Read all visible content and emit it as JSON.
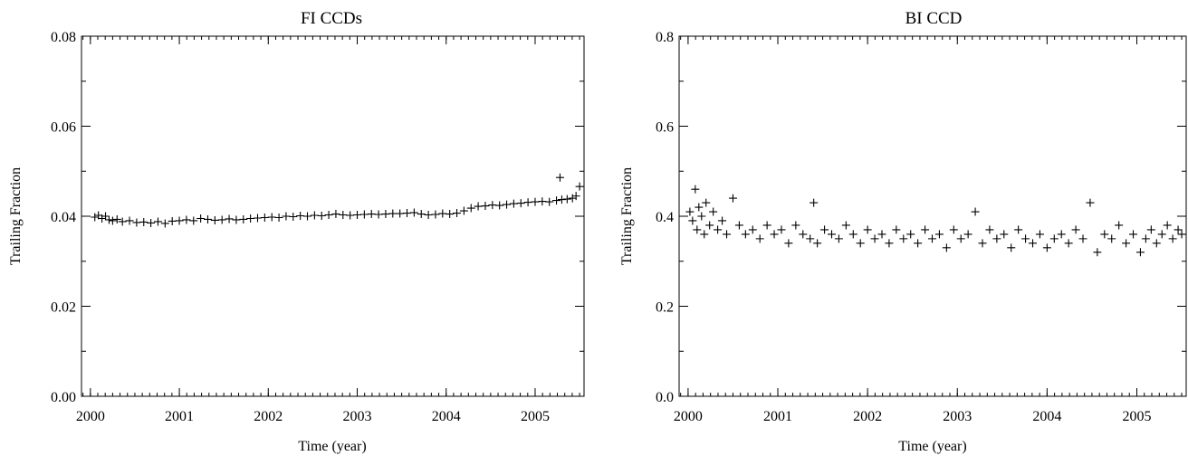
{
  "chart_data": [
    {
      "type": "scatter",
      "title": "FI CCDs",
      "xlabel": "Time (year)",
      "ylabel": "Trailing Fraction",
      "xlim": [
        1999.9,
        2005.55
      ],
      "ylim": [
        0.0,
        0.08
      ],
      "x_ticks": [
        2000,
        2001,
        2002,
        2003,
        2004,
        2005
      ],
      "x_tick_labels": [
        "2000",
        "2001",
        "2002",
        "2003",
        "2004",
        "2005"
      ],
      "y_ticks": [
        0.0,
        0.02,
        0.04,
        0.06,
        0.08
      ],
      "y_tick_labels": [
        "0.00",
        "0.02",
        "0.04",
        "0.06",
        "0.08"
      ],
      "marker": "+",
      "grid": false,
      "series": [
        {
          "x": [
            2000.05,
            2000.09,
            2000.13,
            2000.17,
            2000.21,
            2000.25,
            2000.3,
            2000.36,
            2000.44,
            2000.52,
            2000.6,
            2000.68,
            2000.76,
            2000.84,
            2000.92,
            2001.0,
            2001.08,
            2001.16,
            2001.24,
            2001.32,
            2001.4,
            2001.48,
            2001.56,
            2001.64,
            2001.72,
            2001.8,
            2001.88,
            2001.96,
            2002.04,
            2002.12,
            2002.2,
            2002.28,
            2002.36,
            2002.44,
            2002.52,
            2002.6,
            2002.68,
            2002.76,
            2002.84,
            2002.92,
            2003.0,
            2003.08,
            2003.16,
            2003.24,
            2003.32,
            2003.4,
            2003.48,
            2003.56,
            2003.64,
            2003.72,
            2003.8,
            2003.88,
            2003.96,
            2004.04,
            2004.12,
            2004.2,
            2004.28,
            2004.36,
            2004.44,
            2004.52,
            2004.6,
            2004.68,
            2004.76,
            2004.84,
            2004.92,
            2005.0,
            2005.08,
            2005.16,
            2005.24,
            2005.3,
            2005.36,
            2005.42,
            2005.46,
            2005.5,
            2005.28
          ],
          "y": [
            0.0398,
            0.0402,
            0.0395,
            0.04,
            0.0392,
            0.039,
            0.0393,
            0.0388,
            0.039,
            0.0386,
            0.0387,
            0.0385,
            0.0388,
            0.0384,
            0.0389,
            0.039,
            0.0392,
            0.039,
            0.0395,
            0.0393,
            0.0391,
            0.0392,
            0.0394,
            0.0392,
            0.0393,
            0.0395,
            0.0396,
            0.0397,
            0.0398,
            0.0397,
            0.04,
            0.0399,
            0.0401,
            0.04,
            0.0402,
            0.0401,
            0.0403,
            0.0405,
            0.0403,
            0.0402,
            0.0403,
            0.0404,
            0.0405,
            0.0404,
            0.0405,
            0.0406,
            0.0406,
            0.0407,
            0.0408,
            0.0405,
            0.0403,
            0.0404,
            0.0406,
            0.0405,
            0.0407,
            0.0412,
            0.0418,
            0.0422,
            0.0423,
            0.0425,
            0.0424,
            0.0426,
            0.0428,
            0.0429,
            0.0431,
            0.0432,
            0.0433,
            0.0432,
            0.0435,
            0.0437,
            0.0438,
            0.044,
            0.0445,
            0.0466,
            0.0486
          ]
        }
      ]
    },
    {
      "type": "scatter",
      "title": "BI CCD",
      "xlabel": "Time (year)",
      "ylabel": "Trailing Fraction",
      "xlim": [
        1999.9,
        2005.55
      ],
      "ylim": [
        0.0,
        0.8
      ],
      "x_ticks": [
        2000,
        2001,
        2002,
        2003,
        2004,
        2005
      ],
      "x_tick_labels": [
        "2000",
        "2001",
        "2002",
        "2003",
        "2004",
        "2005"
      ],
      "y_ticks": [
        0.0,
        0.2,
        0.4,
        0.6,
        0.8
      ],
      "y_tick_labels": [
        "0.0",
        "0.2",
        "0.4",
        "0.6",
        "0.8"
      ],
      "marker": "+",
      "grid": false,
      "series": [
        {
          "x": [
            2000.02,
            2000.05,
            2000.08,
            2000.1,
            2000.12,
            2000.15,
            2000.18,
            2000.2,
            2000.24,
            2000.28,
            2000.33,
            2000.38,
            2000.43,
            2000.5,
            2000.57,
            2000.64,
            2000.72,
            2000.8,
            2000.88,
            2000.96,
            2001.04,
            2001.12,
            2001.2,
            2001.28,
            2001.36,
            2001.4,
            2001.44,
            2001.52,
            2001.6,
            2001.68,
            2001.76,
            2001.84,
            2001.92,
            2002.0,
            2002.08,
            2002.16,
            2002.24,
            2002.32,
            2002.4,
            2002.48,
            2002.56,
            2002.64,
            2002.72,
            2002.8,
            2002.88,
            2002.96,
            2003.04,
            2003.12,
            2003.2,
            2003.28,
            2003.36,
            2003.44,
            2003.52,
            2003.6,
            2003.68,
            2003.76,
            2003.84,
            2003.92,
            2004.0,
            2004.08,
            2004.16,
            2004.24,
            2004.32,
            2004.4,
            2004.48,
            2004.56,
            2004.64,
            2004.72,
            2004.8,
            2004.88,
            2004.96,
            2005.04,
            2005.1,
            2005.16,
            2005.22,
            2005.28,
            2005.34,
            2005.4,
            2005.46,
            2005.5
          ],
          "y": [
            0.41,
            0.39,
            0.46,
            0.37,
            0.42,
            0.4,
            0.36,
            0.43,
            0.38,
            0.41,
            0.37,
            0.39,
            0.36,
            0.44,
            0.38,
            0.36,
            0.37,
            0.35,
            0.38,
            0.36,
            0.37,
            0.34,
            0.38,
            0.36,
            0.35,
            0.43,
            0.34,
            0.37,
            0.36,
            0.35,
            0.38,
            0.36,
            0.34,
            0.37,
            0.35,
            0.36,
            0.34,
            0.37,
            0.35,
            0.36,
            0.34,
            0.37,
            0.35,
            0.36,
            0.33,
            0.37,
            0.35,
            0.36,
            0.41,
            0.34,
            0.37,
            0.35,
            0.36,
            0.33,
            0.37,
            0.35,
            0.34,
            0.36,
            0.33,
            0.35,
            0.36,
            0.34,
            0.37,
            0.35,
            0.43,
            0.32,
            0.36,
            0.35,
            0.38,
            0.34,
            0.36,
            0.32,
            0.35,
            0.37,
            0.34,
            0.36,
            0.38,
            0.35,
            0.37,
            0.36
          ]
        }
      ]
    }
  ]
}
